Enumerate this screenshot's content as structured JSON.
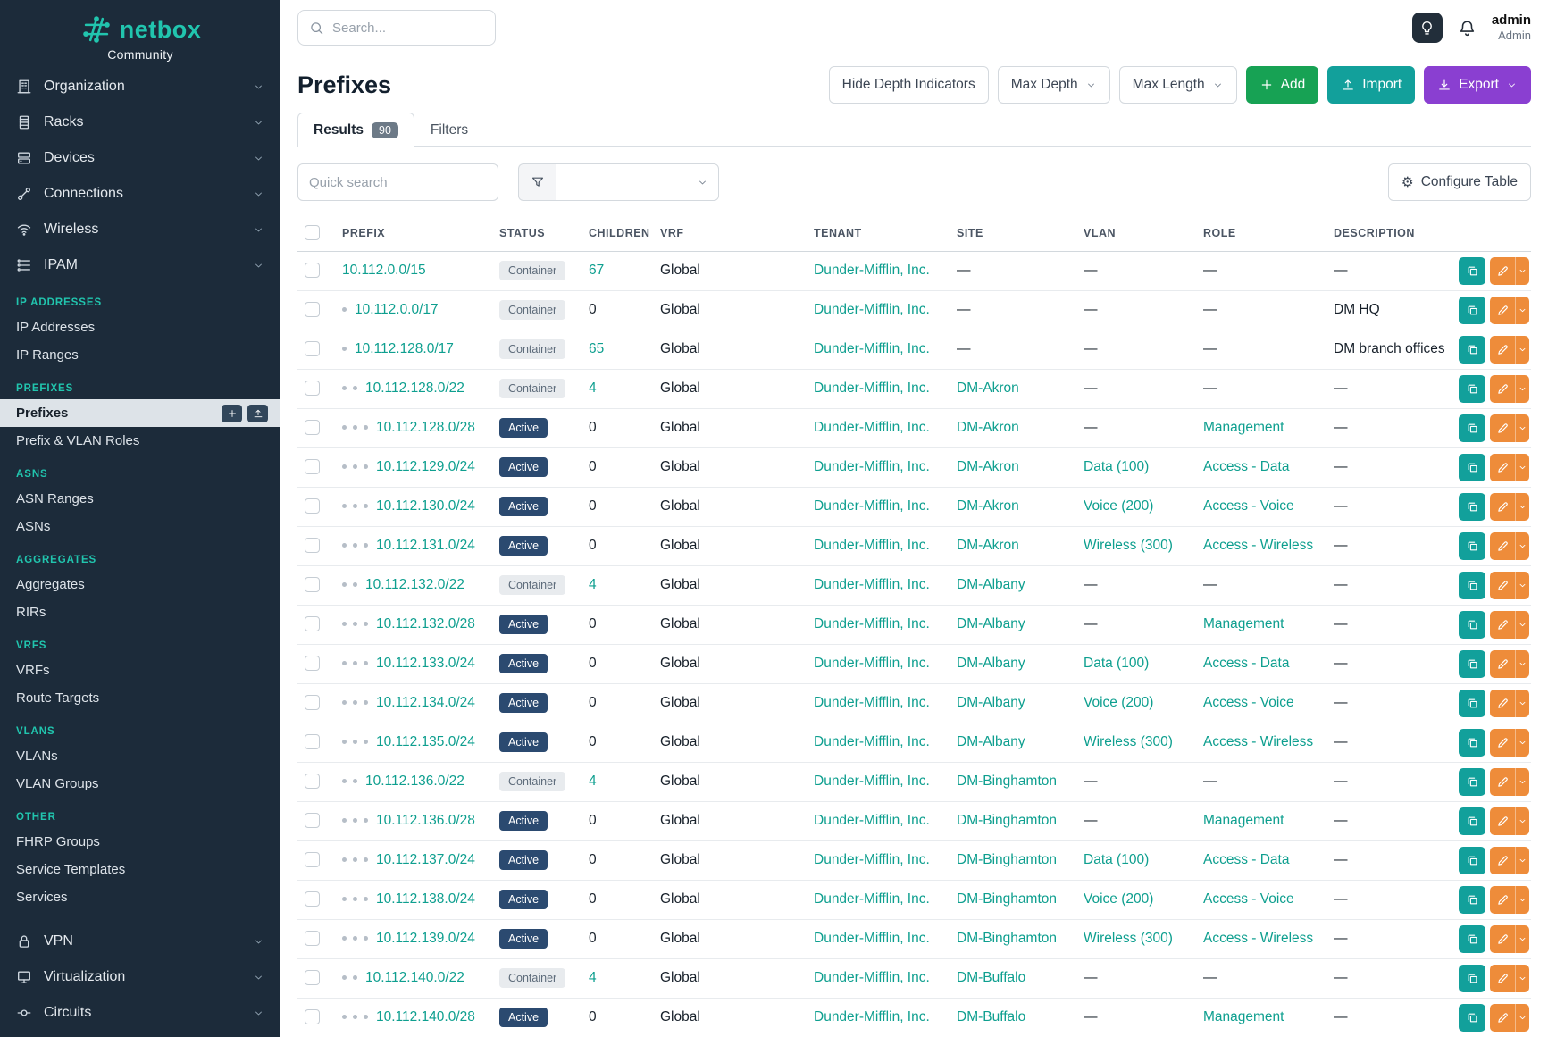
{
  "colors": {
    "sidebar_bg": "#1c2b3a",
    "accent_teal": "#0e9f8f",
    "accent_teal_bright": "#21c5ae",
    "add_green": "#17a254",
    "import_teal": "#12a09b",
    "export_purple": "#8a3fd1",
    "edit_orange": "#ee8c3a",
    "active_badge_blue": "#2b4a70"
  },
  "brand": {
    "name": "netbox",
    "subtitle": "Community"
  },
  "header": {
    "search_placeholder": "Search...",
    "user_name": "admin",
    "user_role": "Admin"
  },
  "sidebar": {
    "groups_top": [
      {
        "label": "Organization",
        "icon": "organization-icon"
      },
      {
        "label": "Racks",
        "icon": "racks-icon"
      },
      {
        "label": "Devices",
        "icon": "devices-icon"
      },
      {
        "label": "Connections",
        "icon": "connections-icon"
      },
      {
        "label": "Wireless",
        "icon": "wireless-icon"
      },
      {
        "label": "IPAM",
        "icon": "ipam-icon"
      }
    ],
    "sections": [
      {
        "title": "IP ADDRESSES",
        "items": [
          {
            "label": "IP Addresses"
          },
          {
            "label": "IP Ranges"
          }
        ]
      },
      {
        "title": "PREFIXES",
        "items": [
          {
            "label": "Prefixes",
            "active": true
          },
          {
            "label": "Prefix & VLAN Roles"
          }
        ]
      },
      {
        "title": "ASNS",
        "items": [
          {
            "label": "ASN Ranges"
          },
          {
            "label": "ASNs"
          }
        ]
      },
      {
        "title": "AGGREGATES",
        "items": [
          {
            "label": "Aggregates"
          },
          {
            "label": "RIRs"
          }
        ]
      },
      {
        "title": "VRFS",
        "items": [
          {
            "label": "VRFs"
          },
          {
            "label": "Route Targets"
          }
        ]
      },
      {
        "title": "VLANS",
        "items": [
          {
            "label": "VLANs"
          },
          {
            "label": "VLAN Groups"
          }
        ]
      },
      {
        "title": "OTHER",
        "items": [
          {
            "label": "FHRP Groups"
          },
          {
            "label": "Service Templates"
          },
          {
            "label": "Services"
          }
        ]
      }
    ],
    "groups_bottom": [
      {
        "label": "VPN",
        "icon": "vpn-icon"
      },
      {
        "label": "Virtualization",
        "icon": "virtualization-icon"
      },
      {
        "label": "Circuits",
        "icon": "circuits-icon"
      }
    ]
  },
  "page": {
    "title": "Prefixes",
    "hide_depth_label": "Hide Depth Indicators",
    "max_depth_label": "Max Depth",
    "max_length_label": "Max Length",
    "add_label": "Add",
    "import_label": "Import",
    "export_label": "Export",
    "tabs": [
      {
        "label": "Results",
        "badge": "90",
        "active": true
      },
      {
        "label": "Filters",
        "active": false
      }
    ],
    "quick_search_placeholder": "Quick search",
    "configure_table_label": "Configure Table"
  },
  "table": {
    "columns": [
      "PREFIX",
      "STATUS",
      "CHILDREN",
      "VRF",
      "TENANT",
      "SITE",
      "VLAN",
      "ROLE",
      "DESCRIPTION"
    ],
    "rows": [
      {
        "depth": 0,
        "prefix": "10.112.0.0/15",
        "status": "Container",
        "children": "67",
        "vrf": "Global",
        "tenant": "Dunder-Mifflin, Inc.",
        "site": "—",
        "vlan": "—",
        "role": "—",
        "description": "—"
      },
      {
        "depth": 1,
        "prefix": "10.112.0.0/17",
        "status": "Container",
        "children": "0",
        "vrf": "Global",
        "tenant": "Dunder-Mifflin, Inc.",
        "site": "—",
        "vlan": "—",
        "role": "—",
        "description": "DM HQ"
      },
      {
        "depth": 1,
        "prefix": "10.112.128.0/17",
        "status": "Container",
        "children": "65",
        "vrf": "Global",
        "tenant": "Dunder-Mifflin, Inc.",
        "site": "—",
        "vlan": "—",
        "role": "—",
        "description": "DM branch offices"
      },
      {
        "depth": 2,
        "prefix": "10.112.128.0/22",
        "status": "Container",
        "children": "4",
        "vrf": "Global",
        "tenant": "Dunder-Mifflin, Inc.",
        "site": "DM-Akron",
        "vlan": "—",
        "role": "—",
        "description": "—"
      },
      {
        "depth": 3,
        "prefix": "10.112.128.0/28",
        "status": "Active",
        "children": "0",
        "vrf": "Global",
        "tenant": "Dunder-Mifflin, Inc.",
        "site": "DM-Akron",
        "vlan": "—",
        "role": "Management",
        "description": "—"
      },
      {
        "depth": 3,
        "prefix": "10.112.129.0/24",
        "status": "Active",
        "children": "0",
        "vrf": "Global",
        "tenant": "Dunder-Mifflin, Inc.",
        "site": "DM-Akron",
        "vlan": "Data (100)",
        "role": "Access - Data",
        "description": "—"
      },
      {
        "depth": 3,
        "prefix": "10.112.130.0/24",
        "status": "Active",
        "children": "0",
        "vrf": "Global",
        "tenant": "Dunder-Mifflin, Inc.",
        "site": "DM-Akron",
        "vlan": "Voice (200)",
        "role": "Access - Voice",
        "description": "—"
      },
      {
        "depth": 3,
        "prefix": "10.112.131.0/24",
        "status": "Active",
        "children": "0",
        "vrf": "Global",
        "tenant": "Dunder-Mifflin, Inc.",
        "site": "DM-Akron",
        "vlan": "Wireless (300)",
        "role": "Access - Wireless",
        "description": "—"
      },
      {
        "depth": 2,
        "prefix": "10.112.132.0/22",
        "status": "Container",
        "children": "4",
        "vrf": "Global",
        "tenant": "Dunder-Mifflin, Inc.",
        "site": "DM-Albany",
        "vlan": "—",
        "role": "—",
        "description": "—"
      },
      {
        "depth": 3,
        "prefix": "10.112.132.0/28",
        "status": "Active",
        "children": "0",
        "vrf": "Global",
        "tenant": "Dunder-Mifflin, Inc.",
        "site": "DM-Albany",
        "vlan": "—",
        "role": "Management",
        "description": "—"
      },
      {
        "depth": 3,
        "prefix": "10.112.133.0/24",
        "status": "Active",
        "children": "0",
        "vrf": "Global",
        "tenant": "Dunder-Mifflin, Inc.",
        "site": "DM-Albany",
        "vlan": "Data (100)",
        "role": "Access - Data",
        "description": "—"
      },
      {
        "depth": 3,
        "prefix": "10.112.134.0/24",
        "status": "Active",
        "children": "0",
        "vrf": "Global",
        "tenant": "Dunder-Mifflin, Inc.",
        "site": "DM-Albany",
        "vlan": "Voice (200)",
        "role": "Access - Voice",
        "description": "—"
      },
      {
        "depth": 3,
        "prefix": "10.112.135.0/24",
        "status": "Active",
        "children": "0",
        "vrf": "Global",
        "tenant": "Dunder-Mifflin, Inc.",
        "site": "DM-Albany",
        "vlan": "Wireless (300)",
        "role": "Access - Wireless",
        "description": "—"
      },
      {
        "depth": 2,
        "prefix": "10.112.136.0/22",
        "status": "Container",
        "children": "4",
        "vrf": "Global",
        "tenant": "Dunder-Mifflin, Inc.",
        "site": "DM-Binghamton",
        "vlan": "—",
        "role": "—",
        "description": "—"
      },
      {
        "depth": 3,
        "prefix": "10.112.136.0/28",
        "status": "Active",
        "children": "0",
        "vrf": "Global",
        "tenant": "Dunder-Mifflin, Inc.",
        "site": "DM-Binghamton",
        "vlan": "—",
        "role": "Management",
        "description": "—"
      },
      {
        "depth": 3,
        "prefix": "10.112.137.0/24",
        "status": "Active",
        "children": "0",
        "vrf": "Global",
        "tenant": "Dunder-Mifflin, Inc.",
        "site": "DM-Binghamton",
        "vlan": "Data (100)",
        "role": "Access - Data",
        "description": "—"
      },
      {
        "depth": 3,
        "prefix": "10.112.138.0/24",
        "status": "Active",
        "children": "0",
        "vrf": "Global",
        "tenant": "Dunder-Mifflin, Inc.",
        "site": "DM-Binghamton",
        "vlan": "Voice (200)",
        "role": "Access - Voice",
        "description": "—"
      },
      {
        "depth": 3,
        "prefix": "10.112.139.0/24",
        "status": "Active",
        "children": "0",
        "vrf": "Global",
        "tenant": "Dunder-Mifflin, Inc.",
        "site": "DM-Binghamton",
        "vlan": "Wireless (300)",
        "role": "Access - Wireless",
        "description": "—"
      },
      {
        "depth": 2,
        "prefix": "10.112.140.0/22",
        "status": "Container",
        "children": "4",
        "vrf": "Global",
        "tenant": "Dunder-Mifflin, Inc.",
        "site": "DM-Buffalo",
        "vlan": "—",
        "role": "—",
        "description": "—"
      },
      {
        "depth": 3,
        "prefix": "10.112.140.0/28",
        "status": "Active",
        "children": "0",
        "vrf": "Global",
        "tenant": "Dunder-Mifflin, Inc.",
        "site": "DM-Buffalo",
        "vlan": "—",
        "role": "Management",
        "description": "—"
      }
    ]
  }
}
